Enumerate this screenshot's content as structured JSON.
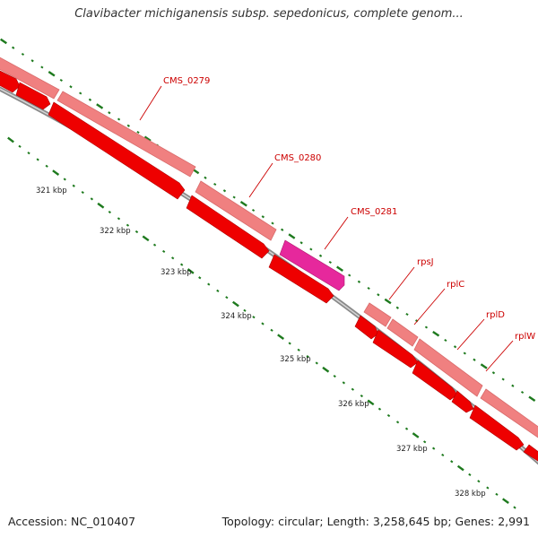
{
  "title": "Clavibacter michiganensis subsp. sepedonicus, complete genom...",
  "footer": {
    "accession": "Accession: NC_010407",
    "summary": "Topology: circular; Length: 3,258,645 bp; Genes: 2,991"
  },
  "colors": {
    "cds": "#ee0000",
    "gene": "#f08080",
    "highlight_cds": "#e6289c",
    "backbone": "#8a8a8a",
    "tick": "#1e7a1e",
    "label_line": "#cc0000"
  },
  "tick_labels": [
    "321 kbp",
    "322 kbp",
    "323 kbp",
    "324 kbp",
    "325 kbp",
    "326 kbp",
    "327 kbp",
    "328 kbp"
  ],
  "gene_labels": [
    "CMS_0279",
    "CMS_0280",
    "CMS_0281",
    "rpsJ",
    "rplC",
    "rplD",
    "rplW"
  ]
}
